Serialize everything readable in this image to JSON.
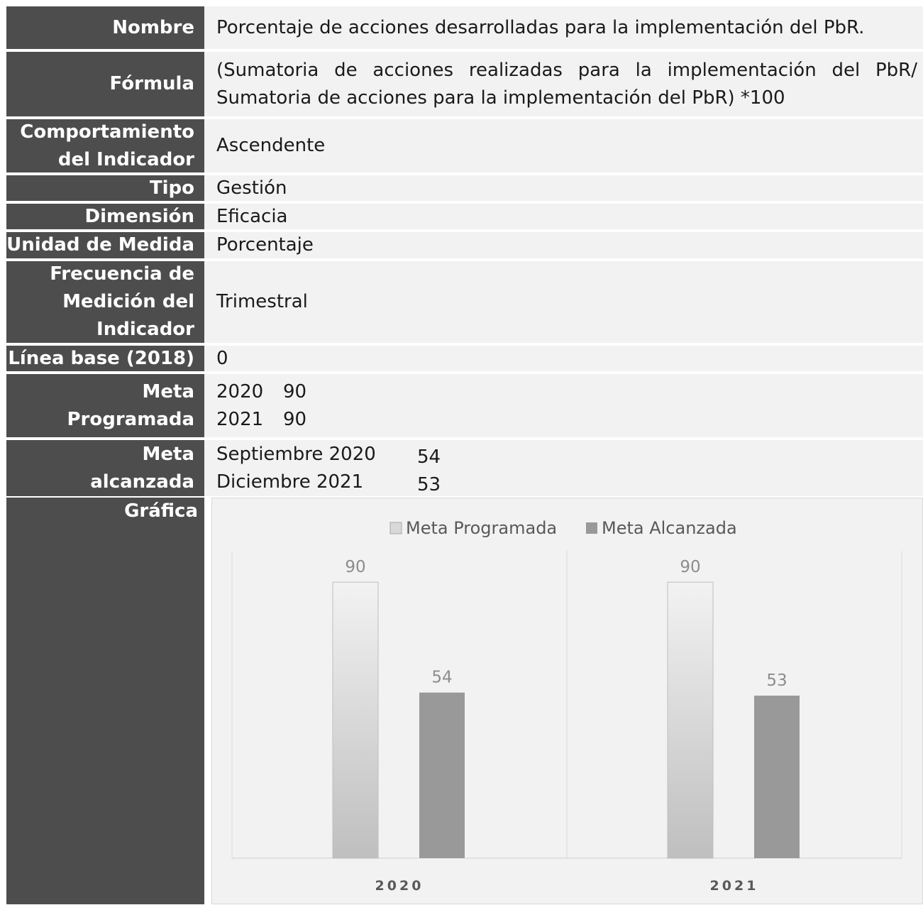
{
  "rows": {
    "nombre": {
      "label": "Nombre",
      "value": "Porcentaje de acciones desarrolladas para la implementación del PbR."
    },
    "formula": {
      "label": "Fórmula",
      "value": "(Sumatoria de acciones realizadas para la implementación del PbR/ Sumatoria de acciones para la implementación del PbR) *100"
    },
    "comportamiento": {
      "label_line1": "Comportamiento",
      "label_line2": "del Indicador",
      "value": "Ascendente"
    },
    "tipo": {
      "label": "Tipo",
      "value": "Gestión"
    },
    "dimension": {
      "label": "Dimensión",
      "value": "Eficacia"
    },
    "unidad": {
      "label": "Unidad de Medida",
      "value": "Porcentaje"
    },
    "frecuencia": {
      "label_line1": "Frecuencia de",
      "label_line2": "Medición del",
      "label_line3": "Indicador",
      "value": "Trimestral"
    },
    "linea_base": {
      "label": "Línea base (2018)",
      "value": "0"
    },
    "meta_programada": {
      "label_line1": "Meta",
      "label_line2": "Programada",
      "entries": [
        {
          "year": "2020",
          "value": "90"
        },
        {
          "year": "2021",
          "value": "90"
        }
      ]
    },
    "meta_alcanzada": {
      "label_line1": "Meta",
      "label_line2": "alcanzada",
      "entries": [
        {
          "period": "Septiembre 2020",
          "value": "54"
        },
        {
          "period": "Diciembre 2021",
          "value": "53"
        }
      ]
    },
    "grafica": {
      "label": "Gráfica"
    }
  },
  "chart_data": {
    "type": "bar",
    "categories": [
      "2020",
      "2021"
    ],
    "series": [
      {
        "name": "Meta Programada",
        "values": [
          90,
          90
        ],
        "color": "#d9d9d9"
      },
      {
        "name": "Meta Alcanzada",
        "values": [
          54,
          53
        ],
        "color": "#999999"
      }
    ],
    "ylim": [
      0,
      100
    ],
    "legend_position": "top",
    "data_labels": true,
    "grid": false
  }
}
